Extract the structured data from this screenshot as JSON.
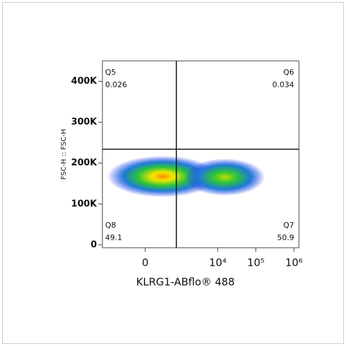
{
  "chart_data": {
    "type": "quadrant-density",
    "x_label": "KLRG1-ABflo® 488",
    "y_label": "FSC-H :: FSC-H",
    "xscale": "arcsinh",
    "xlim": [
      -1650,
      1350000
    ],
    "ylim": [
      -7000,
      450000
    ],
    "xticks": [
      0,
      {
        "value": 10000,
        "label": "10⁴"
      },
      {
        "value": 100000,
        "label": "10⁵"
      },
      {
        "value": 1000000,
        "label": "10⁶"
      }
    ],
    "yticks": [
      0,
      {
        "value": 100000,
        "label": "100K"
      },
      {
        "value": 200000,
        "label": "200K"
      },
      {
        "value": 300000,
        "label": "300K"
      },
      {
        "value": 400000,
        "label": "400K"
      }
    ],
    "gates": {
      "x": 800,
      "y": 234000
    },
    "quadrants": [
      {
        "name": "Q5",
        "value": 0.026,
        "corner": "top-left"
      },
      {
        "name": "Q6",
        "value": 0.034,
        "corner": "top-right"
      },
      {
        "name": "Q7",
        "value": 50.9,
        "corner": "bottom-right"
      },
      {
        "name": "Q8",
        "value": 49.1,
        "corner": "bottom-left"
      }
    ]
  }
}
